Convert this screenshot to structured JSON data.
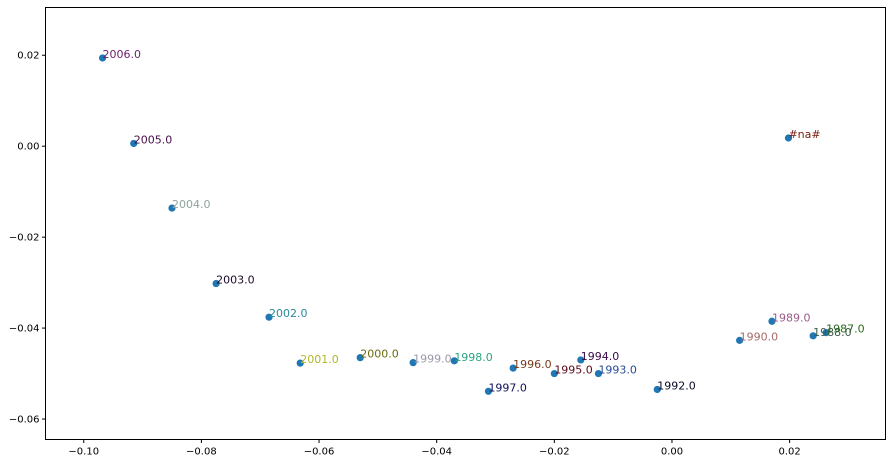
{
  "chart_data": {
    "type": "scatter",
    "title": "",
    "xlabel": "",
    "ylabel": "",
    "xlim": [
      -0.1065,
      0.0363
    ],
    "ylim": [
      -0.0645,
      0.0305
    ],
    "xticks": [
      -0.1,
      -0.08,
      -0.06,
      -0.04,
      -0.02,
      0.0,
      0.02
    ],
    "xtick_labels": [
      "−0.10",
      "−0.08",
      "−0.06",
      "−0.04",
      "−0.02",
      "0.00",
      "0.02"
    ],
    "yticks": [
      0.02,
      0.0,
      -0.02,
      -0.04,
      -0.06
    ],
    "ytick_labels": [
      "0.02",
      "0.00",
      "−0.02",
      "−0.04",
      "−0.06"
    ],
    "grid": false,
    "marker_color": "#1f77b4",
    "points": [
      {
        "label": "2006.0",
        "x": -0.0968,
        "y": 0.0194,
        "color": "#6b1f6b"
      },
      {
        "label": "2005.0",
        "x": -0.0915,
        "y": 0.0006,
        "color": "#4a0f4a"
      },
      {
        "label": "2004.0",
        "x": -0.085,
        "y": -0.0136,
        "color": "#8fa5a0"
      },
      {
        "label": "2003.0",
        "x": -0.0775,
        "y": -0.0302,
        "color": "#1a0a2a"
      },
      {
        "label": "2002.0",
        "x": -0.0685,
        "y": -0.0376,
        "color": "#2a8a9a"
      },
      {
        "label": "2001.0",
        "x": -0.0632,
        "y": -0.0477,
        "color": "#b5b52a"
      },
      {
        "label": "2000.0",
        "x": -0.053,
        "y": -0.0465,
        "color": "#6b6b10"
      },
      {
        "label": "1999.0",
        "x": -0.044,
        "y": -0.0476,
        "color": "#9a9aaa"
      },
      {
        "label": "1998.0",
        "x": -0.037,
        "y": -0.0472,
        "color": "#2aa580"
      },
      {
        "label": "1997.0",
        "x": -0.0312,
        "y": -0.0539,
        "color": "#10105a"
      },
      {
        "label": "1996.0",
        "x": -0.027,
        "y": -0.0488,
        "color": "#7a3a1a"
      },
      {
        "label": "1995.0",
        "x": -0.02,
        "y": -0.05,
        "color": "#5a0a1a"
      },
      {
        "label": "1994.0",
        "x": -0.0155,
        "y": -0.047,
        "color": "#3a0a4a"
      },
      {
        "label": "1993.0",
        "x": -0.0125,
        "y": -0.05,
        "color": "#2a4a9a"
      },
      {
        "label": "1992.0",
        "x": -0.0025,
        "y": -0.0535,
        "color": "#0a0a2a"
      },
      {
        "label": "1990.0",
        "x": 0.0115,
        "y": -0.0427,
        "color": "#a56a6a"
      },
      {
        "label": "1989.0",
        "x": 0.017,
        "y": -0.0385,
        "color": "#9a5a8a"
      },
      {
        "label": "1988.0",
        "x": 0.024,
        "y": -0.0417,
        "color": "#3a5a4a"
      },
      {
        "label": "1987.0",
        "x": 0.0262,
        "y": -0.041,
        "color": "#2a6a1a"
      },
      {
        "label": "#na#",
        "x": 0.0198,
        "y": 0.0018,
        "color": "#7a1a0a"
      }
    ]
  }
}
